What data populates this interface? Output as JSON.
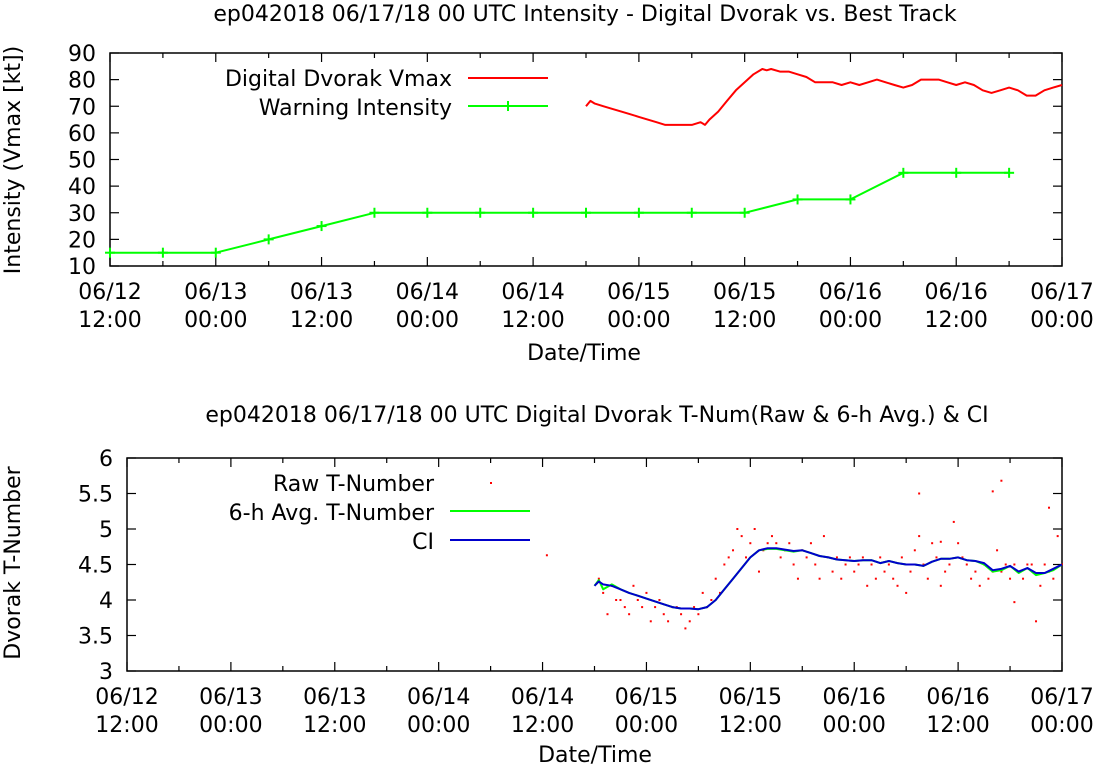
{
  "chart_data": [
    {
      "type": "line",
      "title": "ep042018 06/17/18  00 UTC Intensity - Digital Dvorak vs. Best Track",
      "xlabel": "Date/Time",
      "ylabel": "Intensity (Vmax [kt])",
      "ylim": [
        10,
        90
      ],
      "yticks": [
        10,
        20,
        30,
        40,
        50,
        60,
        70,
        80,
        90
      ],
      "xlim": [
        0,
        108
      ],
      "xticks": [
        {
          "t": 0,
          "date": "06/12",
          "time": "12:00"
        },
        {
          "t": 12,
          "date": "06/13",
          "time": "00:00"
        },
        {
          "t": 24,
          "date": "06/13",
          "time": "12:00"
        },
        {
          "t": 36,
          "date": "06/14",
          "time": "00:00"
        },
        {
          "t": 48,
          "date": "06/14",
          "time": "12:00"
        },
        {
          "t": 60,
          "date": "06/15",
          "time": "00:00"
        },
        {
          "t": 72,
          "date": "06/15",
          "time": "12:00"
        },
        {
          "t": 84,
          "date": "06/16",
          "time": "00:00"
        },
        {
          "t": 96,
          "date": "06/16",
          "time": "12:00"
        },
        {
          "t": 108,
          "date": "06/17",
          "time": "00:00"
        }
      ],
      "series": [
        {
          "name": "Digital Dvorak Vmax",
          "color": "#ff0000",
          "style": "line",
          "x": [
            54,
            54.5,
            55,
            56,
            57,
            58,
            59,
            60,
            61,
            62,
            63,
            64,
            65,
            66,
            67,
            67.5,
            68,
            69,
            70,
            71,
            72,
            73,
            74,
            74.5,
            75,
            76,
            77,
            78,
            79,
            80,
            81,
            82,
            83,
            84,
            85,
            86,
            87,
            88,
            89,
            90,
            91,
            92,
            93,
            94,
            95,
            96,
            97,
            98,
            99,
            100,
            101,
            102,
            103,
            104,
            105,
            106,
            107,
            108
          ],
          "values": [
            70,
            72,
            71,
            70,
            69,
            68,
            67,
            66,
            65,
            64,
            63,
            63,
            63,
            63,
            64,
            63,
            65,
            68,
            72,
            76,
            79,
            82,
            84,
            83.5,
            84,
            83,
            83,
            82,
            81,
            79,
            79,
            79,
            78,
            79,
            78,
            79,
            80,
            79,
            78,
            77,
            78,
            80,
            80,
            80,
            79,
            78,
            79,
            78,
            76,
            75,
            76,
            77,
            76,
            74,
            74,
            76,
            77,
            78
          ]
        },
        {
          "name": "Warning Intensity",
          "color": "#00ff00",
          "style": "linespoints",
          "x": [
            0,
            6,
            12,
            18,
            24,
            30,
            36,
            42,
            48,
            54,
            60,
            66,
            72,
            78,
            84,
            90,
            96,
            102
          ],
          "values": [
            15,
            15,
            15,
            20,
            25,
            30,
            30,
            30,
            30,
            30,
            30,
            30,
            30,
            35,
            35,
            45,
            45,
            45
          ]
        }
      ]
    },
    {
      "type": "line",
      "title": "ep042018 06/17/18  00 UTC Digital Dvorak T-Num(Raw & 6-h Avg.) & CI",
      "xlabel": "Date/Time",
      "ylabel": "Dvorak T-Number",
      "ylim": [
        3,
        6
      ],
      "yticks": [
        3,
        3.5,
        4,
        4.5,
        5,
        5.5,
        6
      ],
      "xlim": [
        0,
        108
      ],
      "xticks": [
        {
          "t": 0,
          "date": "06/12",
          "time": "12:00"
        },
        {
          "t": 12,
          "date": "06/13",
          "time": "00:00"
        },
        {
          "t": 24,
          "date": "06/13",
          "time": "12:00"
        },
        {
          "t": 36,
          "date": "06/14",
          "time": "00:00"
        },
        {
          "t": 48,
          "date": "06/14",
          "time": "12:00"
        },
        {
          "t": 60,
          "date": "06/15",
          "time": "00:00"
        },
        {
          "t": 72,
          "date": "06/15",
          "time": "12:00"
        },
        {
          "t": 84,
          "date": "06/16",
          "time": "00:00"
        },
        {
          "t": 96,
          "date": "06/16",
          "time": "12:00"
        },
        {
          "t": 108,
          "date": "06/17",
          "time": "00:00"
        }
      ],
      "series": [
        {
          "name": "Raw T-Number",
          "color": "#ff0000",
          "style": "dots",
          "x": [
            54.5,
            55,
            55.5,
            56,
            56.5,
            57,
            57.5,
            58,
            58.5,
            59,
            59.5,
            60,
            60.5,
            61,
            61.5,
            62,
            62.5,
            63,
            63.5,
            64,
            64.5,
            65,
            65.5,
            66,
            66.5,
            67,
            67.5,
            68,
            68.5,
            69,
            69.5,
            70,
            70.5,
            71,
            71.5,
            72,
            72.5,
            73,
            73.5,
            74,
            74.5,
            75,
            75.5,
            76,
            76.5,
            77,
            77.5,
            78,
            78.5,
            79,
            79.5,
            80,
            80.5,
            81,
            81.5,
            82,
            82.5,
            83,
            83.5,
            84,
            84.5,
            85,
            85.5,
            86,
            86.5,
            87,
            87.5,
            88,
            88.5,
            89,
            89.5,
            90,
            90.5,
            91,
            91.5,
            92,
            92.5,
            93,
            93.5,
            94,
            94.5,
            95,
            95.5,
            96,
            96.5,
            97,
            97.5,
            98,
            98.5,
            99,
            99.5,
            100,
            100.5,
            101,
            101.5,
            102,
            102.5,
            103,
            103.5,
            104,
            104.5,
            105,
            105.5,
            106,
            106.5,
            107,
            107.5,
            108
          ],
          "values": [
            4.3,
            4.1,
            3.8,
            4.2,
            4.0,
            4.0,
            3.9,
            3.8,
            4.2,
            4.0,
            3.9,
            4.1,
            3.7,
            3.9,
            4.0,
            3.8,
            3.7,
            3.9,
            3.9,
            3.8,
            3.6,
            3.7,
            3.9,
            3.8,
            4.1,
            3.9,
            4.0,
            4.3,
            4.1,
            4.5,
            4.6,
            4.7,
            5.0,
            4.9,
            4.6,
            4.8,
            5.0,
            4.4,
            4.7,
            4.8,
            4.9,
            4.8,
            4.6,
            4.7,
            4.8,
            4.5,
            4.3,
            4.7,
            4.6,
            4.8,
            4.5,
            4.3,
            4.9,
            4.6,
            4.4,
            4.6,
            4.3,
            4.5,
            4.6,
            4.4,
            4.5,
            4.6,
            4.2,
            4.5,
            4.3,
            4.6,
            4.4,
            4.5,
            4.3,
            4.2,
            4.6,
            4.1,
            4.4,
            4.7,
            4.9,
            4.5,
            4.3,
            4.8,
            4.6,
            4.2,
            4.4,
            4.5,
            5.1,
            4.8,
            4.6,
            4.5,
            4.3,
            4.4,
            4.2,
            4.5,
            4.3,
            4.4,
            4.7,
            4.4,
            4.5,
            4.3,
            4.5,
            4.4,
            4.3,
            4.5,
            4.5,
            3.7,
            4.2,
            4.5,
            4.4,
            4.3,
            4.9,
            4.5
          ],
          "extra_x": [
            48.5,
            91.5,
            94,
            100,
            101,
            102.5,
            106.5
          ],
          "extra_values": [
            4.63,
            5.5,
            4.82,
            5.53,
            5.68,
            3.97,
            5.3
          ]
        },
        {
          "name": "6-h Avg. T-Number",
          "color": "#00ff00",
          "style": "line",
          "x": [
            54,
            54.5,
            55,
            56,
            57,
            58,
            59,
            60,
            61,
            62,
            63,
            64,
            65,
            66,
            67,
            68,
            69,
            70,
            71,
            72,
            73,
            74,
            75,
            76,
            77,
            78,
            79,
            80,
            81,
            82,
            83,
            84,
            85,
            86,
            87,
            88,
            89,
            90,
            91,
            92,
            93,
            94,
            95,
            96,
            97,
            98,
            99,
            100,
            101,
            102,
            103,
            104,
            105,
            106,
            107,
            108
          ],
          "values": [
            4.2,
            4.28,
            4.15,
            4.22,
            4.15,
            4.1,
            4.06,
            4.02,
            3.98,
            3.94,
            3.9,
            3.88,
            3.88,
            3.87,
            3.9,
            4.0,
            4.15,
            4.3,
            4.45,
            4.6,
            4.7,
            4.72,
            4.72,
            4.7,
            4.68,
            4.7,
            4.66,
            4.62,
            4.6,
            4.57,
            4.56,
            4.55,
            4.56,
            4.56,
            4.52,
            4.55,
            4.52,
            4.5,
            4.5,
            4.48,
            4.54,
            4.58,
            4.58,
            4.6,
            4.56,
            4.55,
            4.5,
            4.4,
            4.42,
            4.48,
            4.38,
            4.45,
            4.35,
            4.38,
            4.42,
            4.5
          ]
        },
        {
          "name": "CI",
          "color": "#0000cc",
          "style": "line",
          "x": [
            54,
            54.5,
            55,
            56,
            57,
            58,
            59,
            60,
            61,
            62,
            63,
            64,
            65,
            66,
            67,
            68,
            69,
            70,
            71,
            72,
            73,
            74,
            75,
            76,
            77,
            78,
            79,
            80,
            81,
            82,
            83,
            84,
            85,
            86,
            87,
            88,
            89,
            90,
            91,
            92,
            93,
            94,
            95,
            96,
            97,
            98,
            99,
            100,
            101,
            102,
            103,
            104,
            105,
            106,
            107,
            108
          ],
          "values": [
            4.2,
            4.26,
            4.22,
            4.2,
            4.15,
            4.1,
            4.06,
            4.02,
            3.98,
            3.94,
            3.9,
            3.88,
            3.88,
            3.87,
            3.9,
            4.0,
            4.15,
            4.3,
            4.45,
            4.6,
            4.7,
            4.73,
            4.73,
            4.71,
            4.69,
            4.7,
            4.66,
            4.62,
            4.6,
            4.57,
            4.56,
            4.55,
            4.56,
            4.56,
            4.52,
            4.55,
            4.52,
            4.5,
            4.5,
            4.48,
            4.54,
            4.58,
            4.58,
            4.6,
            4.56,
            4.55,
            4.52,
            4.42,
            4.44,
            4.48,
            4.4,
            4.45,
            4.38,
            4.38,
            4.44,
            4.5
          ]
        }
      ]
    }
  ]
}
